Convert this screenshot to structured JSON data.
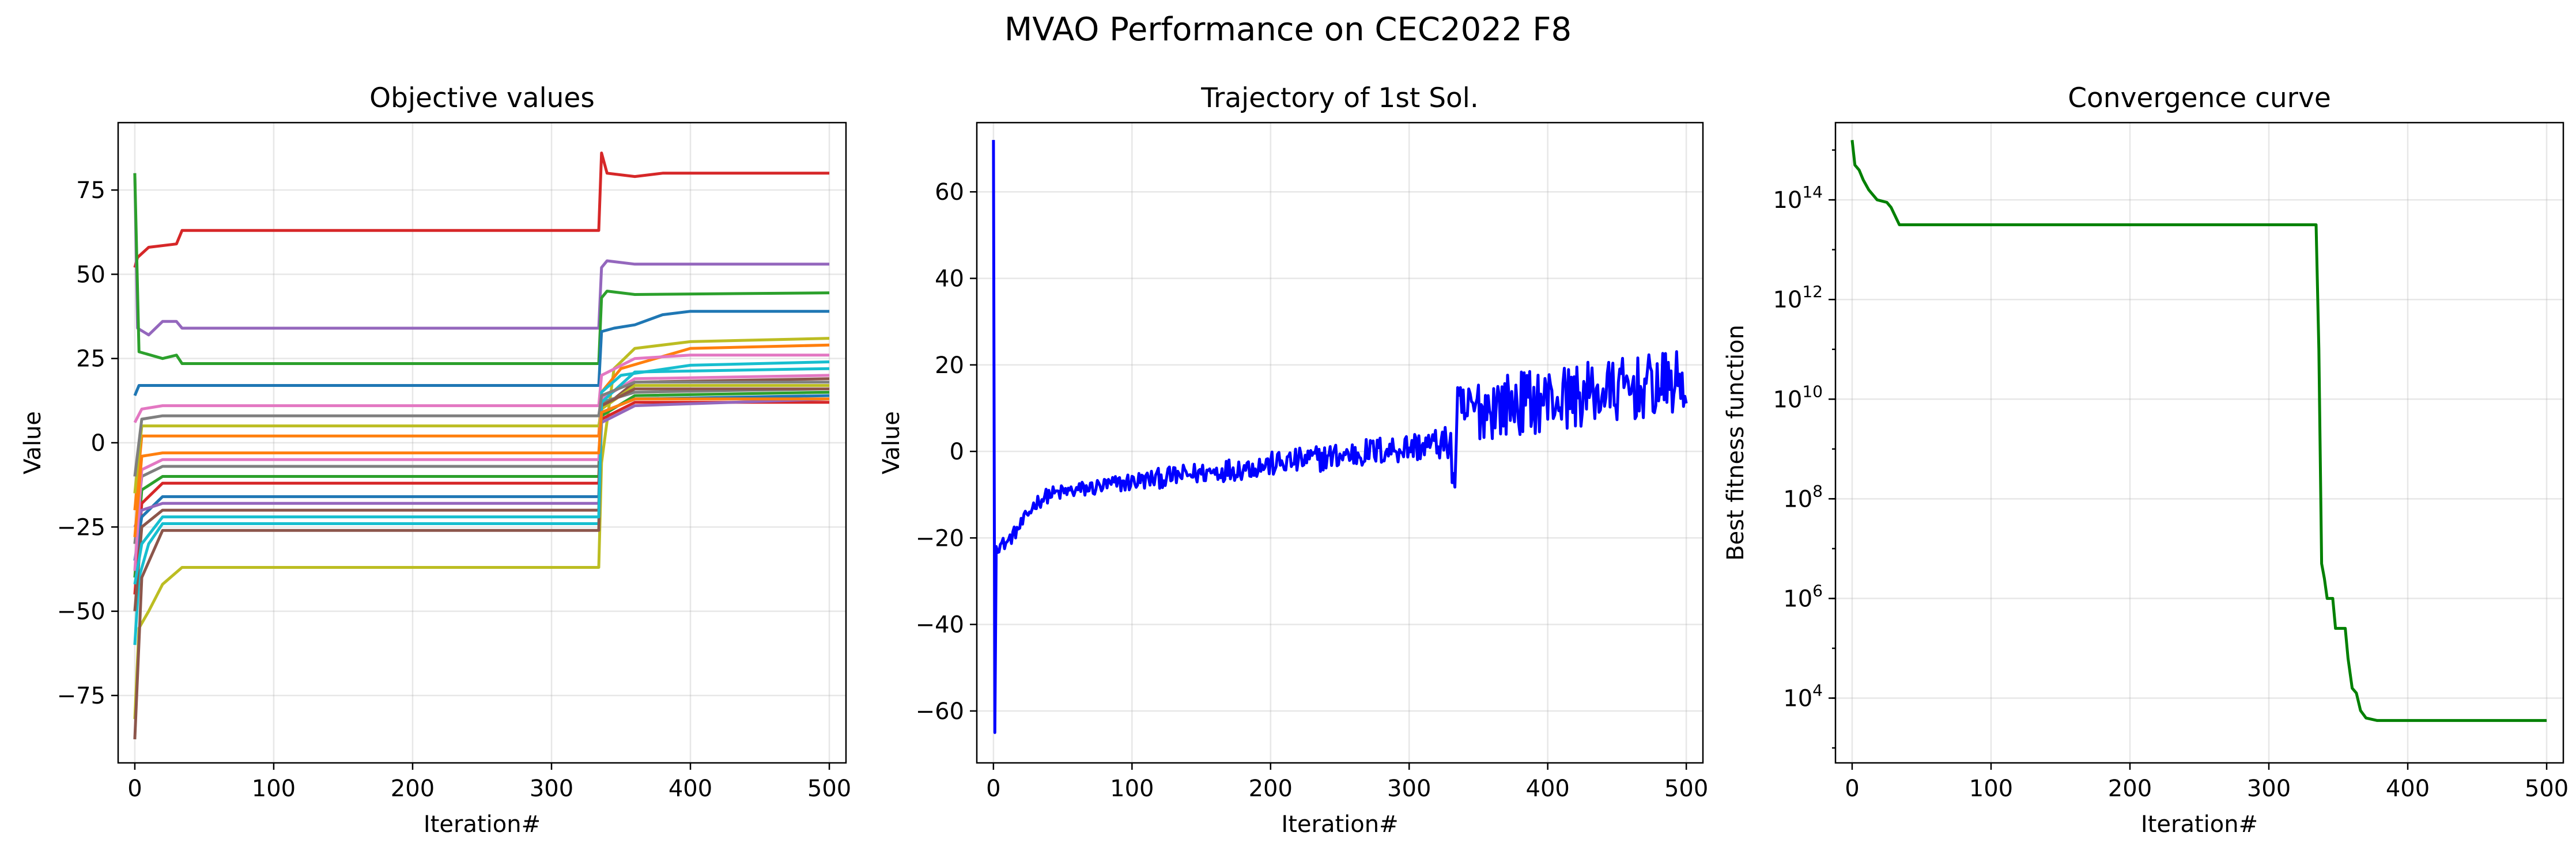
{
  "figure": {
    "suptitle": "MVAO Performance on CEC2022 F8"
  },
  "chart_data": [
    {
      "type": "line",
      "title": "Objective values",
      "xlabel": "Iteration#",
      "ylabel": "Value",
      "xlim": [
        -12,
        512
      ],
      "ylim": [
        -95,
        95
      ],
      "xticks": [
        0,
        100,
        200,
        300,
        400,
        500
      ],
      "yticks": [
        -75,
        -50,
        -25,
        0,
        25,
        50,
        75
      ],
      "grid": true,
      "note": "20 series (one per population member), step-like; values estimated from the plot",
      "series": [
        {
          "color": "#d62728",
          "points": [
            [
              0,
              52
            ],
            [
              2,
              55
            ],
            [
              10,
              58
            ],
            [
              30,
              59
            ],
            [
              34,
              63
            ],
            [
              334,
              63
            ],
            [
              336,
              86
            ],
            [
              340,
              80
            ],
            [
              360,
              79
            ],
            [
              380,
              80
            ],
            [
              500,
              80
            ]
          ]
        },
        {
          "color": "#9467bd",
          "points": [
            [
              0,
              80
            ],
            [
              2,
              34
            ],
            [
              10,
              32
            ],
            [
              20,
              36
            ],
            [
              30,
              36
            ],
            [
              34,
              34
            ],
            [
              334,
              34
            ],
            [
              336,
              52
            ],
            [
              340,
              54
            ],
            [
              360,
              53
            ],
            [
              500,
              53
            ]
          ]
        },
        {
          "color": "#2ca02c",
          "points": [
            [
              0,
              80
            ],
            [
              3,
              27
            ],
            [
              20,
              25
            ],
            [
              30,
              26
            ],
            [
              34,
              23.5
            ],
            [
              334,
              23.5
            ],
            [
              336,
              43
            ],
            [
              340,
              45
            ],
            [
              360,
              44
            ],
            [
              500,
              44.5
            ]
          ]
        },
        {
          "color": "#1f77b4",
          "points": [
            [
              0,
              14
            ],
            [
              3,
              17
            ],
            [
              334,
              17
            ],
            [
              336,
              33
            ],
            [
              345,
              34
            ],
            [
              360,
              35
            ],
            [
              380,
              38
            ],
            [
              400,
              39
            ],
            [
              500,
              39
            ]
          ]
        },
        {
          "color": "#bcbd22",
          "points": [
            [
              0,
              -82
            ],
            [
              3,
              -55
            ],
            [
              10,
              -50
            ],
            [
              20,
              -42
            ],
            [
              34,
              -37
            ],
            [
              334,
              -37
            ],
            [
              336,
              -6
            ],
            [
              345,
              22
            ],
            [
              360,
              28
            ],
            [
              400,
              30
            ],
            [
              500,
              31
            ]
          ]
        },
        {
          "color": "#ff7f0e",
          "points": [
            [
              0,
              -20
            ],
            [
              5,
              2
            ],
            [
              334,
              2
            ],
            [
              336,
              15
            ],
            [
              350,
              22
            ],
            [
              400,
              28
            ],
            [
              500,
              29
            ]
          ]
        },
        {
          "color": "#e377c2",
          "points": [
            [
              0,
              6
            ],
            [
              5,
              10
            ],
            [
              20,
              11
            ],
            [
              334,
              11
            ],
            [
              336,
              20
            ],
            [
              360,
              25
            ],
            [
              400,
              26
            ],
            [
              500,
              26
            ]
          ]
        },
        {
          "color": "#17becf",
          "points": [
            [
              0,
              -60
            ],
            [
              3,
              -40
            ],
            [
              10,
              -30
            ],
            [
              20,
              -24
            ],
            [
              334,
              -24
            ],
            [
              336,
              15
            ],
            [
              350,
              20
            ],
            [
              400,
              23
            ],
            [
              500,
              24
            ]
          ]
        },
        {
          "color": "#8c564b",
          "points": [
            [
              0,
              -88
            ],
            [
              5,
              -40
            ],
            [
              20,
              -26
            ],
            [
              334,
              -26
            ],
            [
              336,
              10
            ],
            [
              360,
              18
            ],
            [
              500,
              19
            ]
          ]
        },
        {
          "color": "#7f7f7f",
          "points": [
            [
              0,
              -30
            ],
            [
              5,
              -10
            ],
            [
              20,
              -7
            ],
            [
              334,
              -7
            ],
            [
              336,
              12
            ],
            [
              360,
              15
            ],
            [
              500,
              16
            ]
          ]
        },
        {
          "color": "#2ca02c",
          "points": [
            [
              0,
              -40
            ],
            [
              5,
              -14
            ],
            [
              20,
              -10
            ],
            [
              334,
              -10
            ],
            [
              336,
              8
            ],
            [
              360,
              14
            ],
            [
              500,
              15
            ]
          ]
        },
        {
          "color": "#d62728",
          "points": [
            [
              0,
              -45
            ],
            [
              5,
              -18
            ],
            [
              20,
              -12
            ],
            [
              334,
              -12
            ],
            [
              336,
              7
            ],
            [
              360,
              12
            ],
            [
              500,
              12
            ]
          ]
        },
        {
          "color": "#1f77b4",
          "points": [
            [
              0,
              -35
            ],
            [
              5,
              -22
            ],
            [
              20,
              -16
            ],
            [
              334,
              -16
            ],
            [
              336,
              9
            ],
            [
              360,
              13
            ],
            [
              500,
              14
            ]
          ]
        },
        {
          "color": "#9467bd",
          "points": [
            [
              0,
              -25
            ],
            [
              5,
              -20
            ],
            [
              20,
              -18
            ],
            [
              334,
              -18
            ],
            [
              336,
              6
            ],
            [
              360,
              11
            ],
            [
              500,
              13
            ]
          ]
        },
        {
          "color": "#bcbd22",
          "points": [
            [
              0,
              -15
            ],
            [
              5,
              5
            ],
            [
              334,
              5
            ],
            [
              336,
              10
            ],
            [
              360,
              17
            ],
            [
              500,
              17
            ]
          ]
        },
        {
          "color": "#8c564b",
          "points": [
            [
              0,
              -50
            ],
            [
              5,
              -25
            ],
            [
              20,
              -20
            ],
            [
              334,
              -20
            ],
            [
              336,
              11
            ],
            [
              360,
              16
            ],
            [
              500,
              16
            ]
          ]
        },
        {
          "color": "#e377c2",
          "points": [
            [
              0,
              -38
            ],
            [
              5,
              -8
            ],
            [
              20,
              -5
            ],
            [
              334,
              -5
            ],
            [
              336,
              13
            ],
            [
              360,
              19
            ],
            [
              500,
              20
            ]
          ]
        },
        {
          "color": "#17becf",
          "points": [
            [
              0,
              -42
            ],
            [
              5,
              -30
            ],
            [
              20,
              -22
            ],
            [
              334,
              -22
            ],
            [
              336,
              12
            ],
            [
              360,
              21
            ],
            [
              500,
              22
            ]
          ]
        },
        {
          "color": "#7f7f7f",
          "points": [
            [
              0,
              -10
            ],
            [
              5,
              7
            ],
            [
              20,
              8
            ],
            [
              334,
              8
            ],
            [
              336,
              14
            ],
            [
              360,
              18
            ],
            [
              500,
              18
            ]
          ]
        },
        {
          "color": "#ff7f0e",
          "points": [
            [
              0,
              -28
            ],
            [
              5,
              -4
            ],
            [
              20,
              -3
            ],
            [
              334,
              -3
            ],
            [
              336,
              9
            ],
            [
              360,
              13
            ],
            [
              500,
              13
            ]
          ]
        }
      ]
    },
    {
      "type": "line",
      "title": "Trajectory of 1st Sol.",
      "xlabel": "Iteration#",
      "ylabel": "Value",
      "xlim": [
        -12,
        512
      ],
      "ylim": [
        -72,
        76
      ],
      "xticks": [
        0,
        100,
        200,
        300,
        400,
        500
      ],
      "yticks": [
        -60,
        -40,
        -20,
        0,
        20,
        40,
        60
      ],
      "grid": true,
      "color": "#0000ff",
      "note": "noisy trajectory; generated by script around this trend with growing noise after x=330",
      "trend": [
        [
          0,
          72
        ],
        [
          1,
          -65
        ],
        [
          2,
          -22
        ],
        [
          10,
          -21
        ],
        [
          20,
          -17
        ],
        [
          30,
          -12
        ],
        [
          40,
          -10
        ],
        [
          60,
          -9
        ],
        [
          100,
          -7
        ],
        [
          150,
          -5
        ],
        [
          200,
          -3
        ],
        [
          250,
          -1
        ],
        [
          300,
          1
        ],
        [
          330,
          2
        ],
        [
          332,
          -10
        ],
        [
          335,
          8
        ],
        [
          350,
          10
        ],
        [
          400,
          12
        ],
        [
          450,
          14
        ],
        [
          500,
          16
        ]
      ],
      "noise_before": 2.2,
      "noise_after": 7.5
    },
    {
      "type": "line",
      "title": "Convergence curve",
      "xlabel": "Iteration#",
      "ylabel": "Best fitness function",
      "xlim": [
        -12,
        512
      ],
      "yscale": "log",
      "ylim_log10": [
        2.7,
        15.55
      ],
      "xticks": [
        0,
        100,
        200,
        300,
        400,
        500
      ],
      "ytick_labels": [
        {
          "exp": 14
        },
        {
          "exp": 12
        },
        {
          "exp": 10
        },
        {
          "exp": 8
        },
        {
          "exp": 6
        },
        {
          "exp": 4
        }
      ],
      "grid": true,
      "color": "#008000",
      "points_log10": [
        [
          0,
          15.2
        ],
        [
          2,
          14.7
        ],
        [
          5,
          14.6
        ],
        [
          8,
          14.4
        ],
        [
          12,
          14.2
        ],
        [
          18,
          14.0
        ],
        [
          25,
          13.95
        ],
        [
          28,
          13.85
        ],
        [
          34,
          13.5
        ],
        [
          334,
          13.5
        ],
        [
          336,
          11
        ],
        [
          338,
          6.7
        ],
        [
          340,
          6.4
        ],
        [
          342,
          6.0
        ],
        [
          346,
          6.0
        ],
        [
          348,
          5.4
        ],
        [
          355,
          5.4
        ],
        [
          357,
          4.8
        ],
        [
          360,
          4.2
        ],
        [
          363,
          4.1
        ],
        [
          366,
          3.75
        ],
        [
          370,
          3.6
        ],
        [
          378,
          3.55
        ],
        [
          400,
          3.55
        ],
        [
          500,
          3.55
        ]
      ]
    }
  ]
}
